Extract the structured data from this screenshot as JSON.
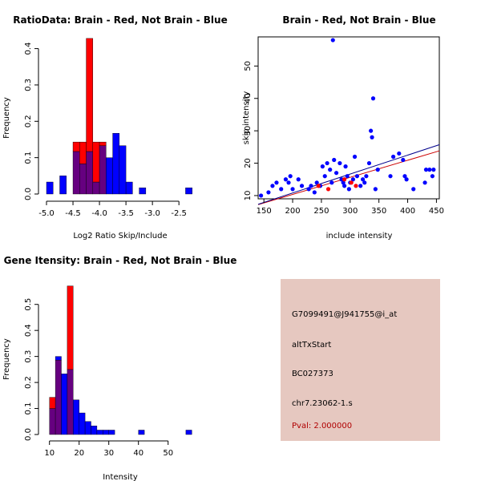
{
  "colors": {
    "red": "#ff0000",
    "blue": "#0000ff",
    "overlap": "#660080",
    "line_red": "#cc0000",
    "line_blue": "#00008b",
    "panel_bg": "#e6c8c0"
  },
  "chart_data": [
    {
      "type": "histogram",
      "title": "RatioData: Brain - Red, Not Brain - Blue",
      "xlabel": "Log2 Ratio Skip/Include",
      "ylabel": "Frequency",
      "xlim": [
        -5.0,
        -2.2
      ],
      "ylim": [
        0,
        0.43
      ],
      "bin_width": 0.125,
      "xticks": [
        -5.0,
        -4.5,
        -4.0,
        -3.5,
        -3.0,
        -2.5
      ],
      "xtick_labels": [
        "-5.0",
        "-4.5",
        "-4.0",
        "-3.5",
        "-3.0",
        "-2.5"
      ],
      "yticks": [
        0.0,
        0.1,
        0.2,
        0.3,
        0.4
      ],
      "ytick_labels": [
        "0.0",
        "0.1",
        "0.2",
        "0.3",
        "0.4"
      ],
      "series": [
        {
          "name": "Brain",
          "color": "red",
          "bins": [
            {
              "x0": -4.5,
              "value": 0.143
            },
            {
              "x0": -4.375,
              "value": 0.143
            },
            {
              "x0": -4.25,
              "value": 0.428
            },
            {
              "x0": -4.125,
              "value": 0.143
            },
            {
              "x0": -4.0,
              "value": 0.143
            }
          ]
        },
        {
          "name": "Not Brain",
          "color": "blue",
          "bins": [
            {
              "x0": -5.0,
              "value": 0.033
            },
            {
              "x0": -4.75,
              "value": 0.05
            },
            {
              "x0": -4.5,
              "value": 0.117
            },
            {
              "x0": -4.375,
              "value": 0.083
            },
            {
              "x0": -4.25,
              "value": 0.117
            },
            {
              "x0": -4.125,
              "value": 0.033
            },
            {
              "x0": -4.0,
              "value": 0.133
            },
            {
              "x0": -3.875,
              "value": 0.1
            },
            {
              "x0": -3.75,
              "value": 0.167
            },
            {
              "x0": -3.625,
              "value": 0.133
            },
            {
              "x0": -3.5,
              "value": 0.033
            },
            {
              "x0": -3.25,
              "value": 0.017
            },
            {
              "x0": -2.375,
              "value": 0.017
            }
          ]
        }
      ]
    },
    {
      "type": "scatter",
      "title": "Brain - Red, Not Brain - Blue",
      "xlabel": "include intensity",
      "ylabel": "skip intensity",
      "xlim": [
        140,
        455
      ],
      "ylim": [
        9,
        59
      ],
      "xticks": [
        150,
        200,
        250,
        300,
        350,
        400,
        450
      ],
      "xtick_labels": [
        "150",
        "200",
        "250",
        "300",
        "350",
        "400",
        "450"
      ],
      "yticks": [
        10,
        20,
        30,
        40,
        50
      ],
      "ytick_labels": [
        "10",
        "20",
        "30",
        "40",
        "50"
      ],
      "series": [
        {
          "name": "Not Brain",
          "color": "blue",
          "points": [
            [
              145,
              10
            ],
            [
              158,
              11
            ],
            [
              165,
              13
            ],
            [
              172,
              14
            ],
            [
              180,
              12
            ],
            [
              188,
              15
            ],
            [
              193,
              14
            ],
            [
              196,
              16
            ],
            [
              200,
              12
            ],
            [
              210,
              15
            ],
            [
              216,
              13
            ],
            [
              228,
              12
            ],
            [
              232,
              13
            ],
            [
              238,
              11
            ],
            [
              242,
              14
            ],
            [
              248,
              13
            ],
            [
              252,
              19
            ],
            [
              256,
              16
            ],
            [
              260,
              20
            ],
            [
              265,
              18
            ],
            [
              268,
              14
            ],
            [
              272,
              21
            ],
            [
              276,
              17
            ],
            [
              282,
              20
            ],
            [
              285,
              15
            ],
            [
              288,
              14
            ],
            [
              290,
              13
            ],
            [
              292,
              19
            ],
            [
              295,
              16
            ],
            [
              298,
              12
            ],
            [
              300,
              14
            ],
            [
              305,
              15
            ],
            [
              308,
              22
            ],
            [
              312,
              16
            ],
            [
              318,
              13
            ],
            [
              322,
              15
            ],
            [
              325,
              14
            ],
            [
              328,
              16
            ],
            [
              333,
              20
            ],
            [
              336,
              30
            ],
            [
              338,
              28
            ],
            [
              340,
              40
            ],
            [
              344,
              12
            ],
            [
              348,
              18
            ],
            [
              270,
              58
            ],
            [
              370,
              16
            ],
            [
              375,
              22
            ],
            [
              385,
              23
            ],
            [
              392,
              21
            ],
            [
              395,
              16
            ],
            [
              398,
              15
            ],
            [
              410,
              12
            ],
            [
              430,
              14
            ],
            [
              432,
              18
            ],
            [
              438,
              18
            ],
            [
              443,
              16
            ],
            [
              445,
              18
            ]
          ]
        },
        {
          "name": "Brain",
          "color": "red",
          "points": [
            [
              245,
              13
            ],
            [
              262,
              12
            ],
            [
              290,
              15
            ],
            [
              302,
              14
            ],
            [
              310,
              13
            ]
          ]
        }
      ],
      "fit_lines": [
        {
          "name": "Brain",
          "color": "line_red",
          "from": [
            140,
            7.2
          ],
          "to": [
            455,
            23.8
          ]
        },
        {
          "name": "Not Brain",
          "color": "line_blue",
          "from": [
            140,
            7.3
          ],
          "to": [
            455,
            25.7
          ]
        }
      ]
    },
    {
      "type": "histogram",
      "title": "Gene Itensity: Brain - Red, Not Brain - Blue",
      "xlabel": "Intensity",
      "ylabel": "Frequency",
      "xlim": [
        9,
        59
      ],
      "ylim": [
        0,
        0.57
      ],
      "bin_width": 2,
      "xticks": [
        10,
        20,
        30,
        40,
        50
      ],
      "xtick_labels": [
        "10",
        "20",
        "30",
        "40",
        "50"
      ],
      "yticks": [
        0.0,
        0.1,
        0.2,
        0.3,
        0.4,
        0.5
      ],
      "ytick_labels": [
        "0.0",
        "0.1",
        "0.2",
        "0.3",
        "0.4",
        "0.5"
      ],
      "series": [
        {
          "name": "Brain",
          "color": "red",
          "bins": [
            {
              "x0": 10,
              "value": 0.143
            },
            {
              "x0": 12,
              "value": 0.286
            },
            {
              "x0": 14,
              "value": 0.0
            },
            {
              "x0": 16,
              "value": 0.571
            }
          ]
        },
        {
          "name": "Not Brain",
          "color": "blue",
          "bins": [
            {
              "x0": 10,
              "value": 0.1
            },
            {
              "x0": 12,
              "value": 0.3
            },
            {
              "x0": 14,
              "value": 0.233
            },
            {
              "x0": 16,
              "value": 0.25
            },
            {
              "x0": 18,
              "value": 0.133
            },
            {
              "x0": 20,
              "value": 0.083
            },
            {
              "x0": 22,
              "value": 0.05
            },
            {
              "x0": 24,
              "value": 0.033
            },
            {
              "x0": 26,
              "value": 0.017
            },
            {
              "x0": 28,
              "value": 0.017
            },
            {
              "x0": 30,
              "value": 0.017
            },
            {
              "x0": 40,
              "value": 0.017
            },
            {
              "x0": 56,
              "value": 0.017
            }
          ]
        }
      ]
    }
  ],
  "info_panel": {
    "probe_id": "G7099491@J941755@i_at",
    "event_type": "altTxStart",
    "transcript": "BC027373",
    "locus": "chr7.23062-1.s",
    "pval": "Pval: 2.000000"
  }
}
